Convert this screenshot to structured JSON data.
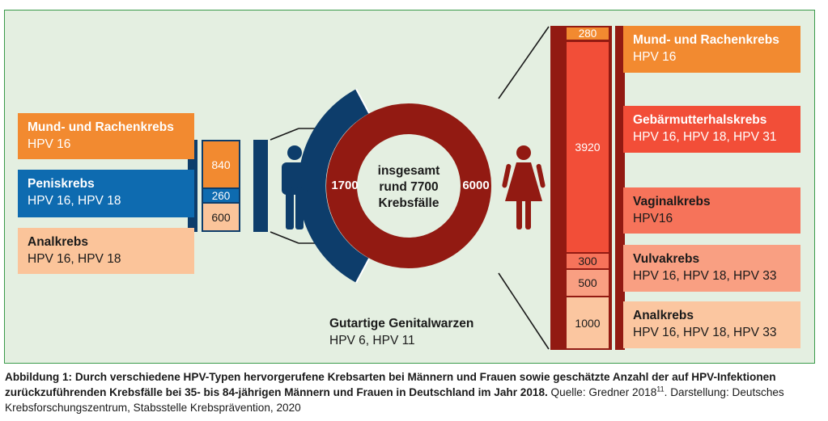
{
  "men": {
    "labels": [
      {
        "title": "Mund- und Rachenkrebs",
        "types": "HPV 16"
      },
      {
        "title": "Peniskrebs",
        "types": "HPV 16, HPV 18"
      },
      {
        "title": "Analkrebs",
        "types": "HPV 16, HPV 18"
      }
    ],
    "counts": [
      "840",
      "260",
      "600"
    ]
  },
  "donut": {
    "men_value": "1700",
    "women_value": "6000",
    "center_line1": "insgesamt",
    "center_line2": "rund 7700",
    "center_line3": "Krebsfälle"
  },
  "women": {
    "counts": [
      "280",
      "3920",
      "300",
      "500",
      "1000"
    ],
    "labels": [
      {
        "title": "Mund- und Rachenkrebs",
        "types": "HPV 16"
      },
      {
        "title": "Gebärmutterhalskrebs",
        "types": "HPV 16, HPV 18, HPV 31"
      },
      {
        "title": "Vaginalkrebs",
        "types": "HPV16"
      },
      {
        "title": "Vulvakrebs",
        "types": "HPV 16, HPV 18, HPV 33"
      },
      {
        "title": "Analkrebs",
        "types": "HPV 16, HPV 18, HPV 33"
      }
    ]
  },
  "warts": {
    "title": "Gutartige Genitalwarzen",
    "types": "HPV 6, HPV 11"
  },
  "caption": {
    "bold": "Abbildung 1: Durch verschiedene HPV-Typen hervorgerufene Krebsarten bei Männern und Frauen sowie geschätzte Anzahl der auf HPV-Infektionen zurückzuführenden Krebsfälle bei 35- bis 84-jährigen Männern und Frauen in Deutschland im Jahr 2018.",
    "source": " Quelle: Gredner 2018",
    "sup": "11",
    "rest": ". Darstellung: Deutsches Krebsforschungszentrum, Stabsstelle Krebsprävention, 2020"
  },
  "colors": {
    "orange": "#f28a30",
    "blue": "#0e6bb0",
    "peach": "#fbc49a",
    "navy": "#0d3d6b",
    "darkred": "#921a12",
    "red": "#f24e38",
    "coral": "#f6735a",
    "salmon": "#f99f82",
    "peach2": "#fbc6a0",
    "panel": "#e4efe1"
  }
}
